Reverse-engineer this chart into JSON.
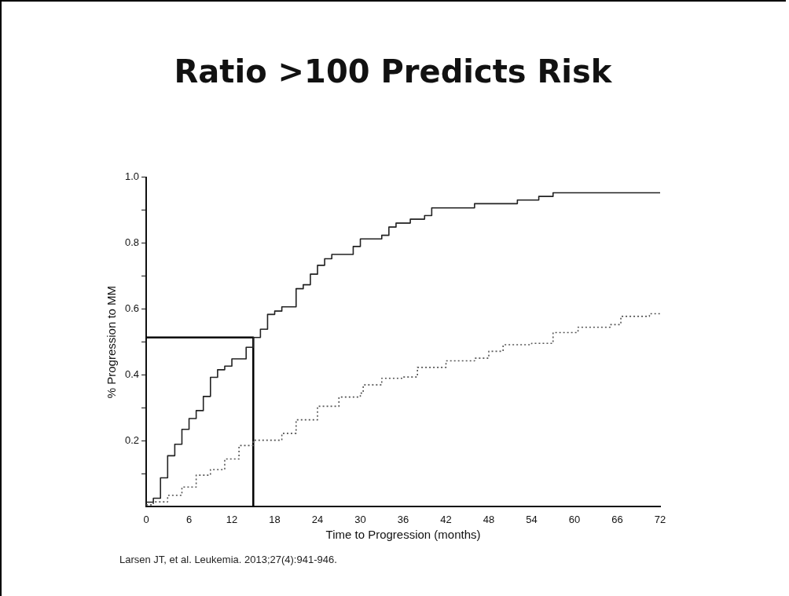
{
  "chart_data": {
    "type": "step",
    "title": "Ratio >100 Predicts Risk",
    "xlabel": "Time to Progression (months)",
    "ylabel": "% Progression to MM",
    "xlim": [
      0,
      72
    ],
    "xticks": [
      0,
      6,
      12,
      18,
      24,
      30,
      36,
      42,
      48,
      54,
      60,
      66,
      72
    ],
    "ylim": [
      0,
      1
    ],
    "yticks": [
      {
        "value": 0.1,
        "label": null
      },
      0.2,
      {
        "value": 0.3,
        "label": null
      },
      0.4,
      {
        "value": 0.5,
        "label": null
      },
      0.6,
      {
        "value": 0.7,
        "label": null
      },
      0.8,
      {
        "value": 0.9,
        "label": null
      },
      {
        "value": 1.0,
        "label": "1.0"
      }
    ],
    "grid": false,
    "legend": false,
    "marker": "none",
    "series": [
      {
        "type": "step",
        "color": "#222222",
        "line_style": "solid",
        "x": [
          0,
          1,
          2,
          3,
          4,
          5,
          6,
          7,
          8,
          9,
          10,
          11,
          12,
          14,
          15,
          16,
          17,
          18,
          19,
          21,
          22,
          23,
          24,
          25,
          26,
          29,
          30,
          33,
          34,
          35,
          37,
          39,
          40,
          46,
          52,
          55,
          57,
          72
        ],
        "values": [
          0.014,
          0.026,
          0.088,
          0.155,
          0.19,
          0.235,
          0.268,
          0.292,
          0.335,
          0.393,
          0.416,
          0.427,
          0.449,
          0.484,
          0.514,
          0.539,
          0.584,
          0.594,
          0.607,
          0.662,
          0.674,
          0.706,
          0.733,
          0.753,
          0.766,
          0.79,
          0.813,
          0.824,
          0.849,
          0.861,
          0.873,
          0.884,
          0.907,
          0.92,
          0.931,
          0.942,
          0.953,
          0.953
        ]
      },
      {
        "type": "step",
        "color": "#555555",
        "line_style": "dotted",
        "x": [
          0,
          1,
          3,
          5,
          7,
          9,
          11,
          13,
          15,
          19,
          21,
          24,
          27,
          30,
          30.4,
          33,
          36,
          38,
          41,
          42,
          46,
          48,
          50,
          54,
          57,
          60.5,
          65,
          66.5,
          70.5,
          72
        ],
        "values": [
          0.006,
          0.015,
          0.035,
          0.06,
          0.096,
          0.113,
          0.145,
          0.186,
          0.202,
          0.223,
          0.264,
          0.305,
          0.333,
          0.345,
          0.37,
          0.39,
          0.394,
          0.423,
          0.423,
          0.443,
          0.451,
          0.472,
          0.492,
          0.496,
          0.529,
          0.545,
          0.553,
          0.578,
          0.586,
          0.586
        ]
      },
      {
        "type": "line",
        "color": "#000000",
        "line_style": "solid",
        "x": [
          0,
          15,
          15
        ],
        "values": [
          0.514,
          0.514,
          0
        ]
      }
    ],
    "annotations": [
      "Larsen JT, et al. Leukemia. 2013;27(4):941-946."
    ]
  }
}
